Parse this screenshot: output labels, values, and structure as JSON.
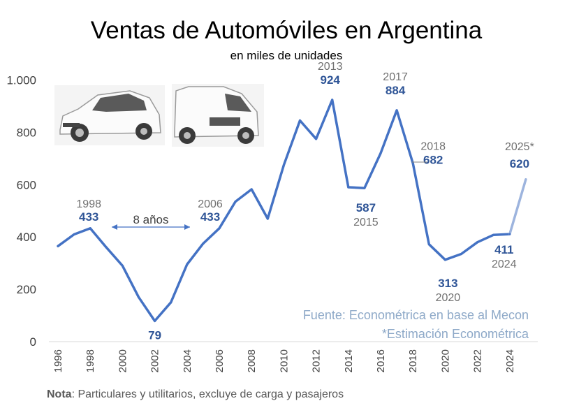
{
  "chart_data": {
    "type": "line",
    "title": "Ventas de Automóviles en Argentina",
    "subtitle": "en miles de unidades",
    "ylim": [
      0,
      1000
    ],
    "yticks": [
      0,
      200,
      400,
      600,
      800,
      1000
    ],
    "ytick_labels": [
      "0",
      "200",
      "400",
      "600",
      "800",
      "1.000"
    ],
    "xticks": [
      1996,
      1998,
      2000,
      2002,
      2004,
      2006,
      2008,
      2010,
      2012,
      2014,
      2016,
      2018,
      2020,
      2022,
      2024
    ],
    "x": [
      1996,
      1997,
      1998,
      1999,
      2000,
      2001,
      2002,
      2003,
      2004,
      2005,
      2006,
      2007,
      2008,
      2009,
      2010,
      2011,
      2012,
      2013,
      2014,
      2015,
      2016,
      2017,
      2018,
      2019,
      2020,
      2021,
      2022,
      2023,
      2024
    ],
    "values": [
      365,
      410,
      433,
      360,
      290,
      170,
      79,
      150,
      295,
      375,
      433,
      535,
      582,
      470,
      675,
      845,
      775,
      924,
      590,
      587,
      720,
      884,
      682,
      372,
      313,
      335,
      380,
      408,
      411
    ],
    "estimate": {
      "x": [
        2024,
        2025
      ],
      "values": [
        411,
        620
      ]
    },
    "annotations": [
      {
        "year": "1998",
        "value": "433",
        "x": 1998,
        "y": 433
      },
      {
        "year": "",
        "value": "79",
        "x": 2002,
        "y": 79
      },
      {
        "year": "2006",
        "value": "433",
        "x": 2006,
        "y": 433
      },
      {
        "year": "2013",
        "value": "924",
        "x": 2013,
        "y": 924
      },
      {
        "year": "2015",
        "value": "587",
        "x": 2015,
        "y": 587
      },
      {
        "year": "2017",
        "value": "884",
        "x": 2017,
        "y": 884
      },
      {
        "year": "2018",
        "value": "682",
        "x": 2018,
        "y": 682
      },
      {
        "year": "2020",
        "value": "313",
        "x": 2020,
        "y": 313
      },
      {
        "year": "2024",
        "value": "411",
        "x": 2024,
        "y": 411
      },
      {
        "year": "2025*",
        "value": "620",
        "x": 2025,
        "y": 620
      }
    ],
    "gap_label": "8 años",
    "source": "Fuente: Econométrica en base al Mecon",
    "estimate_note": "*Estimación Econométrica",
    "footnote_bold": "Nota",
    "footnote": ": Particulares y utilitarios, excluye de carga y pasajeros",
    "colors": {
      "line": "#4472C4",
      "estimate": "#9DB4DE",
      "value": "#2F5597",
      "axis": "#D9D9D9"
    }
  },
  "images": [
    {
      "name": "hatchback-car-icon",
      "color": "#f2f2f2"
    },
    {
      "name": "utility-van-icon",
      "color": "#f2f2f2"
    }
  ]
}
